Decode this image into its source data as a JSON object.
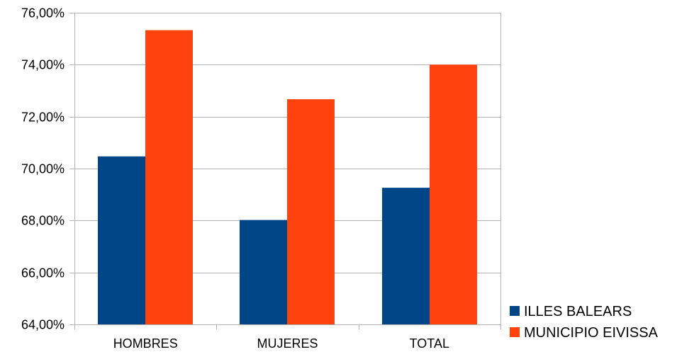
{
  "chart_data": {
    "type": "bar",
    "categories": [
      "HOMBRES",
      "MUJERES",
      "TOTAL"
    ],
    "series": [
      {
        "name": "ILLES BALEARS",
        "values": [
          70.47,
          68.02,
          69.26
        ],
        "color": "#004586"
      },
      {
        "name": "MUNICIPIO EIVISSA",
        "values": [
          75.33,
          72.67,
          74.0
        ],
        "color": "#ff420e"
      }
    ],
    "y_ticks": [
      "64,00%",
      "66,00%",
      "68,00%",
      "70,00%",
      "72,00%",
      "74,00%",
      "76,00%"
    ],
    "ylim": [
      64,
      76
    ],
    "y_tick_step": 2,
    "grid": true,
    "grid_color": "#b3b3b3",
    "legend_position": "bottom-right",
    "title": "",
    "xlabel": "",
    "ylabel": ""
  }
}
